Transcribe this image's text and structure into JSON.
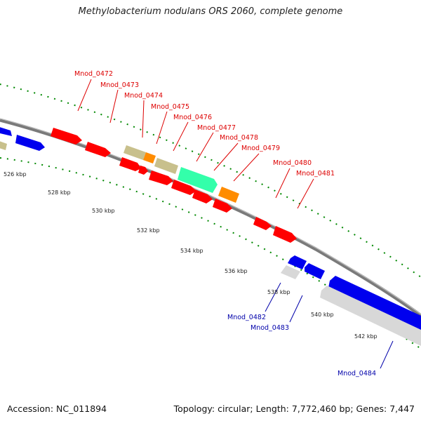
{
  "title": "Methylobacterium nodulans ORS 2060, complete genome",
  "footer": {
    "accession": "Accession: NC_011894",
    "summary": "Topology: circular; Length: 7,772,460 bp; Genes: 7,447"
  },
  "colors": {
    "red": "#ff0000",
    "blue": "#0000ee",
    "tan": "#c8c08c",
    "orange": "#ff8c00",
    "teal": "#33ffaa",
    "gray": "#d8d8d8",
    "dots": "#008800",
    "backbone": "#777777"
  },
  "scale": {
    "ticks": [
      "526 kbp",
      "528 kbp",
      "530 kbp",
      "532 kbp",
      "534 kbp",
      "536 kbp",
      "538 kbp",
      "540 kbp",
      "542 kbp"
    ]
  },
  "genes_forward": [
    "Mnod_0472",
    "Mnod_0473",
    "Mnod_0474",
    "Mnod_0475",
    "Mnod_0476",
    "Mnod_0477",
    "Mnod_0478",
    "Mnod_0479",
    "Mnod_0480",
    "Mnod_0481"
  ],
  "genes_reverse": [
    "Mnod_0482",
    "Mnod_0483",
    "Mnod_0484"
  ]
}
